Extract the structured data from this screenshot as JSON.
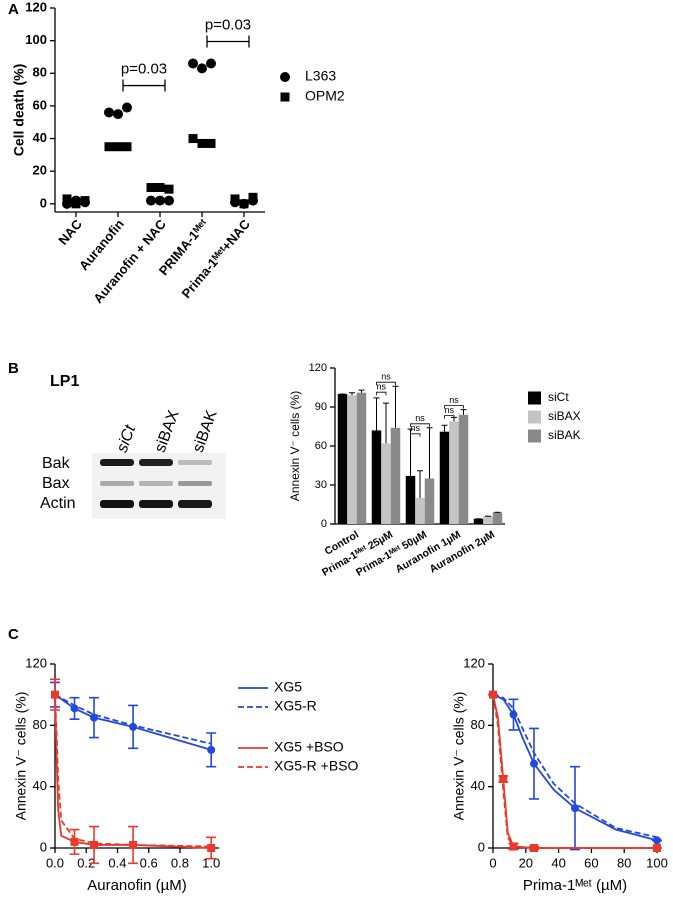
{
  "panel_labels": [
    "A",
    "B",
    "C"
  ],
  "blot": {
    "title": "LP1",
    "lanes": [
      "siCt",
      "siBAX",
      "siBAK"
    ],
    "rows": [
      "Bak",
      "Bax",
      "Actin"
    ]
  },
  "chart_data": [
    {
      "type": "scatter",
      "ylabel": "Cell death (%)",
      "categories": [
        "NAC",
        "Auranofin",
        "Auranofin + NAC",
        "PRIMA-1ᴹᵉᵗ",
        "Prima-1ᴹᵉᵗ+NAC"
      ],
      "ylim": [
        -5,
        120
      ],
      "yticks": [
        0,
        20,
        40,
        60,
        80,
        100,
        120
      ],
      "series": [
        {
          "name": "L363",
          "color": "#000000",
          "marker": "circle",
          "values": [
            [
              0,
              2,
              1
            ],
            [
              56,
              55,
              59
            ],
            [
              2,
              2,
              2
            ],
            [
              86,
              83,
              86
            ],
            [
              1,
              0,
              2
            ]
          ]
        },
        {
          "name": "OPM2",
          "color": "#000000",
          "marker": "square",
          "values": [
            [
              3,
              0,
              2
            ],
            [
              35,
              35,
              35
            ],
            [
              10,
              10,
              9
            ],
            [
              40,
              37,
              37
            ],
            [
              3,
              0,
              4
            ]
          ]
        }
      ],
      "annotations": [
        {
          "text": "p=0.03",
          "between": [
            "Auranofin",
            "Auranofin + NAC"
          ]
        },
        {
          "text": "p=0.03",
          "between": [
            "PRIMA-1ᴹᵉᵗ",
            "Prima-1ᴹᵉᵗ+NAC"
          ]
        }
      ]
    },
    {
      "type": "bar",
      "ylabel": "Annexin V⁻ cells (%)",
      "categories": [
        "Control",
        "Prima-1ᴹᵉᵗ 25µM",
        "Prima-1ᴹᵉᵗ 50µM",
        "Auranofin 1µM",
        "Auranofin 2µM"
      ],
      "ylim": [
        0,
        120
      ],
      "yticks": [
        0,
        30,
        60,
        90,
        120
      ],
      "series": [
        {
          "name": "siCt",
          "color": "#000000",
          "values": [
            100,
            72,
            37,
            71,
            4
          ],
          "errors": [
            0,
            25,
            36,
            5,
            0
          ]
        },
        {
          "name": "siBAX",
          "color": "#c4c4c4",
          "values": [
            99,
            62,
            20,
            79,
            6
          ],
          "errors": [
            2,
            31,
            21,
            3,
            0
          ]
        },
        {
          "name": "siBAK",
          "color": "#8a8a8a",
          "values": [
            101,
            74,
            35,
            84,
            9
          ],
          "errors": [
            2,
            32,
            39,
            4,
            0
          ]
        }
      ],
      "brackets": [
        [],
        [
          "ns",
          "ns"
        ],
        [
          "ns",
          "ns"
        ],
        [
          "ns",
          "ns"
        ],
        []
      ]
    },
    {
      "type": "line",
      "xlabel": "Auranofin (µM)",
      "ylabel": "Annexin V⁻ cells (%)",
      "legend": true,
      "xlim": [
        0,
        1.05
      ],
      "xticks": [
        {
          "value": 0,
          "label": "0.0"
        },
        0.2,
        0.4,
        0.6,
        0.8,
        {
          "value": 1,
          "label": "1.0"
        }
      ],
      "ylim": [
        0,
        120
      ],
      "yticks": [
        0,
        40,
        80,
        120
      ],
      "series": [
        {
          "name": "XG5",
          "color": "#2448d8",
          "marker": "circle",
          "x": [
            0,
            0.125,
            0.25,
            0.5,
            1
          ],
          "values": [
            100,
            91,
            85,
            79,
            64
          ],
          "errors": [
            8,
            7,
            13,
            14,
            11
          ]
        },
        {
          "name": "XG5-R",
          "color": "#2448d8",
          "dash": true,
          "x": [
            0,
            0.125,
            0.25,
            0.5,
            1
          ],
          "values": [
            100,
            93,
            87,
            80,
            68
          ]
        },
        {
          "name": "XG5 +BSO",
          "color": "#e8392c",
          "marker": "square",
          "x": [
            0,
            0.01,
            0.02,
            0.04,
            0.125,
            0.25,
            0.5,
            1
          ],
          "values": [
            100,
            60,
            25,
            8,
            4,
            2,
            2,
            0
          ],
          "errors": [
            10,
            null,
            null,
            null,
            8,
            12,
            12,
            7
          ]
        },
        {
          "name": "XG5-R +BSO",
          "color": "#e8392c",
          "dash": true,
          "x": [
            0,
            0.01,
            0.02,
            0.04,
            0.125,
            0.25,
            0.5,
            1
          ],
          "values": [
            100,
            75,
            45,
            18,
            6,
            3,
            2,
            1
          ]
        }
      ]
    },
    {
      "type": "line",
      "xlabel": "Prima-1ᴹᵉᵗ (µM)",
      "ylabel": "Annexin V⁻ cells (%)",
      "xlim": [
        0,
        100
      ],
      "xticks": [
        0,
        20,
        40,
        60,
        80,
        100
      ],
      "ylim": [
        0,
        120
      ],
      "yticks": [
        0,
        40,
        80,
        120
      ],
      "series": [
        {
          "color": "#2448d8",
          "marker": "circle",
          "x": [
            0,
            6.25,
            12.5,
            18,
            25,
            37,
            50,
            75,
            100
          ],
          "values": [
            100,
            97,
            87,
            72,
            55,
            38,
            26,
            12,
            5
          ],
          "errors": [
            0,
            null,
            10,
            null,
            23,
            null,
            27,
            null,
            0
          ]
        },
        {
          "color": "#2448d8",
          "dash": true,
          "x": [
            0,
            6.25,
            12.5,
            18,
            25,
            37,
            50,
            75,
            100
          ],
          "values": [
            100,
            98,
            91,
            78,
            62,
            42,
            29,
            13,
            7
          ]
        },
        {
          "color": "#e8392c",
          "marker": "square",
          "x": [
            0,
            3,
            6.25,
            9,
            12.5,
            25,
            50,
            100
          ],
          "values": [
            100,
            85,
            45,
            10,
            1,
            0,
            0,
            0
          ],
          "errors": [
            0,
            null,
            2,
            null,
            2,
            1,
            null,
            0
          ]
        },
        {
          "color": "#e8392c",
          "dash": true,
          "x": [
            0,
            3,
            6.25,
            9,
            12.5,
            25,
            50,
            100
          ],
          "values": [
            100,
            80,
            38,
            7,
            1,
            0,
            0,
            0
          ]
        }
      ]
    }
  ]
}
